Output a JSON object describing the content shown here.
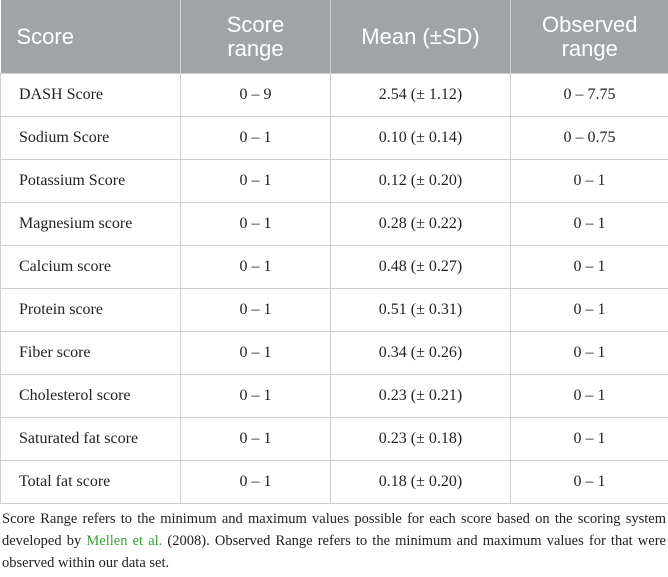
{
  "table": {
    "header": [
      "Score",
      "Score range",
      "Mean (±SD)",
      "Observed range"
    ],
    "rows": [
      [
        "DASH Score",
        "0 – 9",
        "2.54 (± 1.12)",
        "0 – 7.75"
      ],
      [
        "Sodium Score",
        "0 – 1",
        "0.10 (± 0.14)",
        "0 – 0.75"
      ],
      [
        "Potassium Score",
        "0 – 1",
        "0.12 (± 0.20)",
        "0 – 1"
      ],
      [
        "Magnesium score",
        "0 – 1",
        "0.28 (± 0.22)",
        "0 – 1"
      ],
      [
        "Calcium score",
        "0 – 1",
        "0.48 (± 0.27)",
        "0 – 1"
      ],
      [
        "Protein score",
        "0 – 1",
        "0.51 (± 0.31)",
        "0 – 1"
      ],
      [
        "Fiber score",
        "0 – 1",
        "0.34 (± 0.26)",
        "0 – 1"
      ],
      [
        "Cholesterol score",
        "0 – 1",
        "0.23 (± 0.21)",
        "0 – 1"
      ],
      [
        "Saturated fat score",
        "0 – 1",
        "0.23 (± 0.18)",
        "0 – 1"
      ],
      [
        "Total fat score",
        "0 – 1",
        "0.18 (± 0.20)",
        "0 – 1"
      ]
    ]
  },
  "footnote": {
    "before": "Score Range refers to the minimum and maximum values possible for each score based on the scoring system developed by ",
    "link": "Mellen et al.",
    "after": " (2008). Observed Range refers to the minimum and maximum values for that were observed within our data set."
  }
}
